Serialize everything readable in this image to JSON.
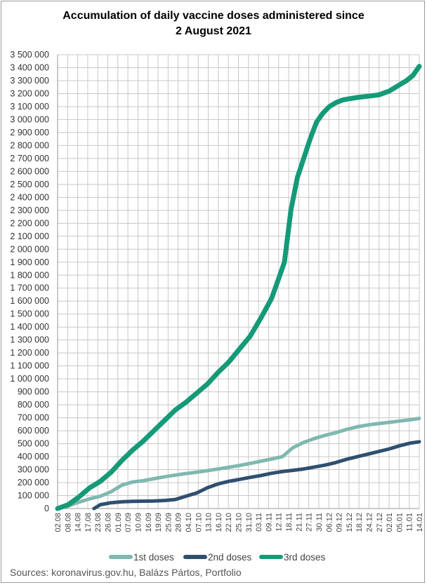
{
  "source": "Sources: koronavirus.gov.hu, Balázs Pártos, Portfolio",
  "chart_data": {
    "type": "line",
    "title_lines": [
      "Accumulation of daily vaccine doses administered since",
      "2 August 2021"
    ],
    "ylim": [
      0,
      3500000
    ],
    "y_ticks": [
      "0",
      "100 000",
      "200 000",
      "300 000",
      "400 000",
      "500 000",
      "600 000",
      "700 000",
      "800 000",
      "900 000",
      "1 000 000",
      "1 100 000",
      "1 200 000",
      "1 300 000",
      "1 400 000",
      "1 500 000",
      "1 600 000",
      "1 700 000",
      "1 800 000",
      "1 900 000",
      "2 000 000",
      "2 100 000",
      "2 200 000",
      "2 300 000",
      "2 400 000",
      "2 500 000",
      "2 600 000",
      "2 700 000",
      "2 800 000",
      "2 900 000",
      "3 000 000",
      "3 100 000",
      "3 200 000",
      "3 300 000",
      "3 400 000",
      "3 500 000"
    ],
    "x_ticks": [
      "02.08",
      "08.08",
      "14.08",
      "17.08",
      "23.08",
      "26.08",
      "01.09",
      "07.09",
      "10.09",
      "16.09",
      "19.09",
      "25.09",
      "28.09",
      "04.10",
      "07.10",
      "13.10",
      "16.10",
      "22.10",
      "25.10",
      "31.10",
      "03.11",
      "09.11",
      "12.11",
      "18.11",
      "21.11",
      "27.11",
      "30.11",
      "06.12",
      "09.12",
      "15.12",
      "18.12",
      "24.12",
      "27.12",
      "02.01",
      "05.01",
      "11.01",
      "14.01"
    ],
    "x_range": [
      0,
      169
    ],
    "grid": true,
    "legend_position": "bottom",
    "series": [
      {
        "name": "1st doses",
        "color": "#7fb8b0",
        "x": [
          0,
          5,
          10,
          15,
          20,
          25,
          30,
          35,
          40,
          45,
          50,
          55,
          60,
          65,
          70,
          75,
          80,
          85,
          90,
          95,
          100,
          105,
          110,
          115,
          120,
          125,
          130,
          135,
          140,
          145,
          150,
          155,
          160,
          165,
          169
        ],
        "values": [
          0,
          20000,
          50000,
          75000,
          95000,
          130000,
          180000,
          205000,
          215000,
          230000,
          245000,
          258000,
          270000,
          280000,
          292000,
          305000,
          318000,
          332000,
          348000,
          365000,
          382000,
          400000,
          470000,
          510000,
          540000,
          565000,
          585000,
          610000,
          630000,
          645000,
          655000,
          665000,
          675000,
          685000,
          695000
        ]
      },
      {
        "name": "2nd doses",
        "color": "#2f4f6f",
        "x": [
          17,
          20,
          25,
          30,
          35,
          40,
          45,
          50,
          55,
          60,
          65,
          70,
          75,
          80,
          85,
          90,
          95,
          100,
          105,
          110,
          115,
          120,
          125,
          130,
          135,
          140,
          145,
          150,
          155,
          160,
          165,
          169
        ],
        "values": [
          0,
          30000,
          45000,
          52000,
          55000,
          57000,
          58000,
          62000,
          70000,
          95000,
          120000,
          160000,
          190000,
          210000,
          225000,
          240000,
          255000,
          272000,
          285000,
          295000,
          305000,
          320000,
          335000,
          355000,
          380000,
          400000,
          420000,
          440000,
          460000,
          485000,
          505000,
          515000
        ]
      },
      {
        "name": "3rd doses",
        "color": "#149a78",
        "x": [
          0,
          5,
          10,
          15,
          20,
          25,
          30,
          35,
          40,
          45,
          50,
          55,
          60,
          65,
          70,
          75,
          80,
          85,
          90,
          95,
          100,
          103,
          106,
          109,
          112,
          115,
          118,
          121,
          124,
          127,
          130,
          133,
          136,
          140,
          145,
          150,
          155,
          160,
          163,
          166,
          169
        ],
        "values": [
          0,
          30000,
          90000,
          160000,
          210000,
          280000,
          370000,
          450000,
          520000,
          600000,
          680000,
          760000,
          820000,
          890000,
          960000,
          1050000,
          1130000,
          1230000,
          1330000,
          1470000,
          1620000,
          1760000,
          1900000,
          2300000,
          2550000,
          2700000,
          2850000,
          2980000,
          3050000,
          3100000,
          3130000,
          3150000,
          3160000,
          3170000,
          3180000,
          3190000,
          3220000,
          3270000,
          3300000,
          3340000,
          3410000
        ]
      }
    ]
  }
}
